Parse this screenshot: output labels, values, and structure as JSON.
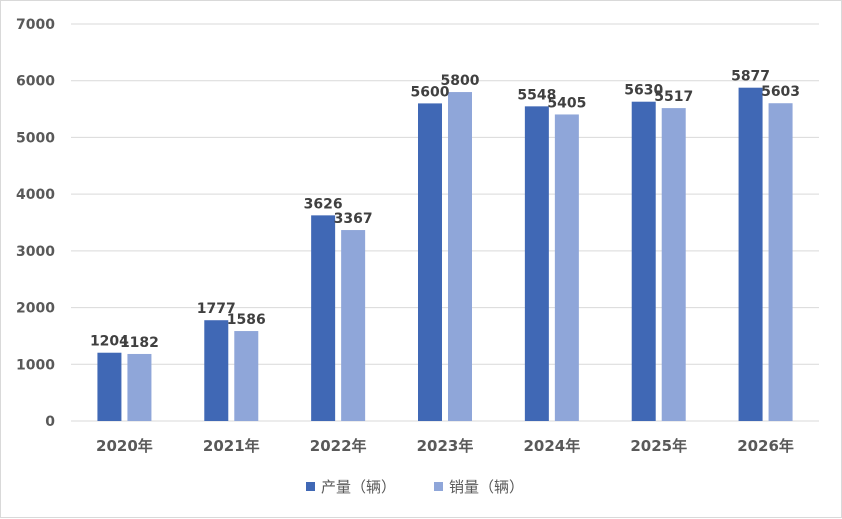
{
  "chart_data": {
    "type": "bar",
    "title": "",
    "xlabel": "",
    "ylabel": "",
    "ylim": [
      0,
      7000
    ],
    "yticks": [
      0,
      1000,
      2000,
      3000,
      4000,
      5000,
      6000,
      7000
    ],
    "grid": true,
    "legend_position": "bottom",
    "categories": [
      "2020年",
      "2021年",
      "2022年",
      "2023年",
      "2024年",
      "2025年",
      "2026年"
    ],
    "series": [
      {
        "name": "产量（辆）",
        "color": "#4068b5",
        "values": [
          1204,
          1777,
          3626,
          5600,
          5548,
          5630,
          5877
        ]
      },
      {
        "name": "销量（辆）",
        "color": "#8fa6d9",
        "values": [
          1182,
          1586,
          3367,
          5800,
          5405,
          5517,
          5603
        ]
      }
    ]
  }
}
